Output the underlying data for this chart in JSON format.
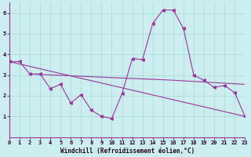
{
  "xlabel": "Windchill (Refroidissement éolien,°C)",
  "bg_color": "#cceef0",
  "grid_color": "#aadddd",
  "line_color": "#993399",
  "spine_color": "#993399",
  "x_ticks": [
    0,
    1,
    2,
    3,
    4,
    5,
    6,
    7,
    8,
    9,
    10,
    11,
    12,
    13,
    14,
    15,
    16,
    17,
    18,
    19,
    20,
    21,
    22,
    23
  ],
  "y_ticks": [
    1,
    2,
    3,
    4,
    5,
    6
  ],
  "ylim": [
    0.0,
    6.5
  ],
  "xlim": [
    0,
    23
  ],
  "series1_x": [
    0,
    1,
    2,
    3,
    4,
    5,
    6,
    7,
    8,
    9,
    10,
    11,
    12,
    13,
    14,
    15,
    16,
    17,
    18,
    19,
    20,
    21,
    22,
    23
  ],
  "series1_y": [
    3.65,
    3.65,
    3.05,
    3.05,
    2.35,
    2.55,
    1.65,
    2.05,
    1.3,
    1.0,
    0.9,
    2.1,
    3.8,
    3.75,
    5.5,
    6.15,
    6.15,
    5.25,
    3.0,
    2.75,
    2.4,
    2.5,
    2.15,
    1.0
  ],
  "series2_x": [
    0,
    23
  ],
  "series2_y": [
    3.65,
    1.0
  ],
  "series3_x": [
    2,
    16,
    23
  ],
  "series3_y": [
    3.05,
    2.75,
    2.55
  ]
}
